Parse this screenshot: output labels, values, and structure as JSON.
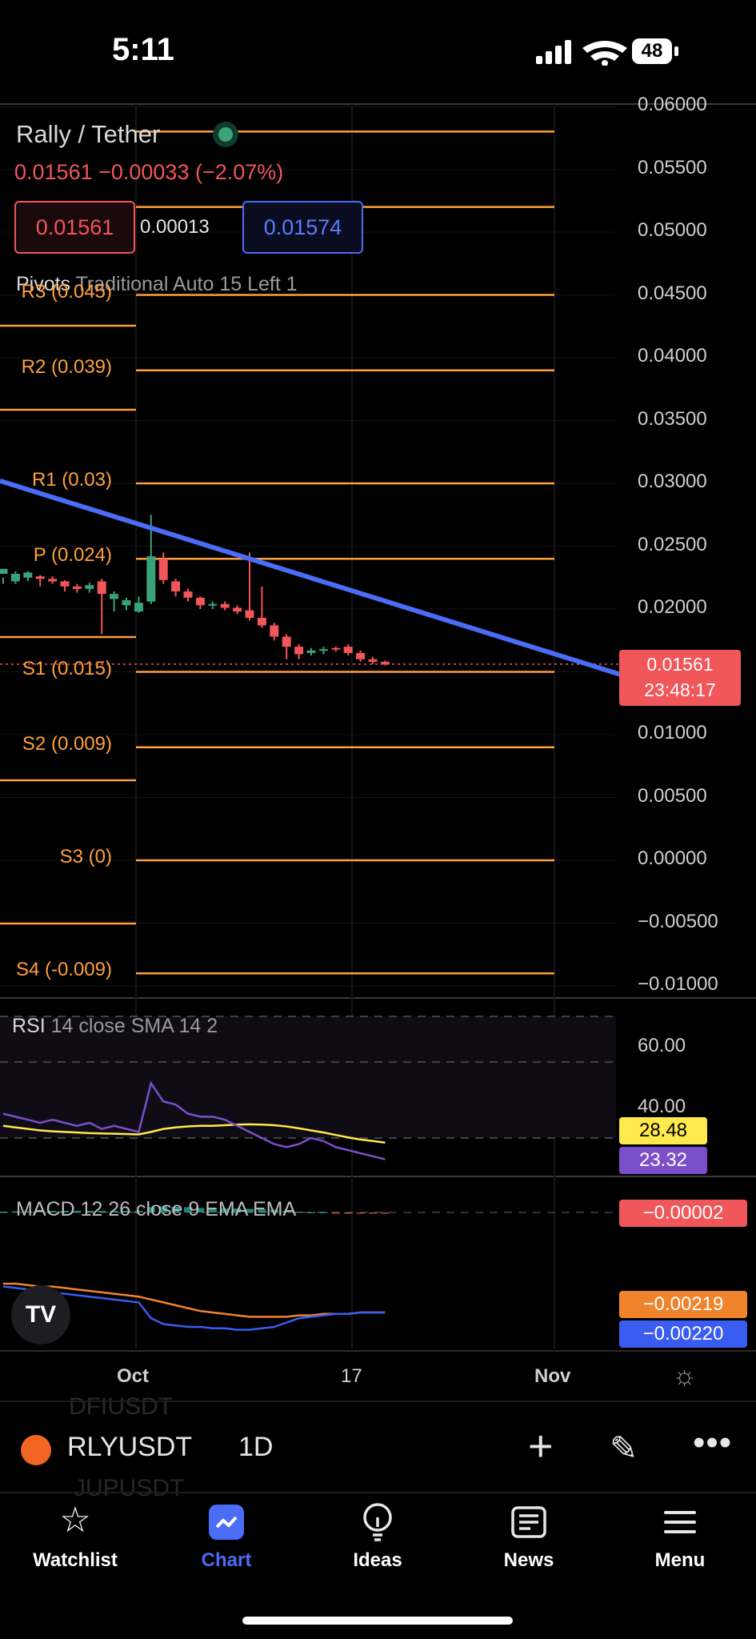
{
  "status_bar": {
    "time": "5:11",
    "battery": "48"
  },
  "header": {
    "title": "Rally / Tether",
    "price_line": "0.01561 −0.00033 (−2.07%)",
    "bid": "0.01561",
    "spread": "0.00013",
    "ask": "0.01574"
  },
  "pivots_legend": {
    "name": "Pivots",
    "params": "Traditional Auto 15 Left 1"
  },
  "pivot_levels": [
    {
      "label": "R3 (0.045)",
      "value": 0.045
    },
    {
      "label": "R2 (0.039)",
      "value": 0.039
    },
    {
      "label": "R1 (0.03)",
      "value": 0.03
    },
    {
      "label": "P (0.024)",
      "value": 0.024
    },
    {
      "label": "S1 (0.015)",
      "value": 0.015
    },
    {
      "label": "S2 (0.009)",
      "value": 0.009
    },
    {
      "label": "S3 (0)",
      "value": 0
    },
    {
      "label": "S4 (-0.009)",
      "value": -0.009
    }
  ],
  "price_axis": [
    "0.06000",
    "0.05500",
    "0.05000",
    "0.04500",
    "0.04000",
    "0.03500",
    "0.03000",
    "0.02500",
    "0.02000",
    "0.01500",
    "0.01000",
    "0.00500",
    "0.00000",
    "−0.00500",
    "−0.01000"
  ],
  "last_price_tag": {
    "price": "0.01561",
    "countdown": "23:48:17"
  },
  "rsi": {
    "legend_name": "RSI",
    "legend_params": "14 close SMA 14 2",
    "axis": [
      "60.00",
      "40.00"
    ],
    "sma_value": "28.48",
    "rsi_value": "23.32"
  },
  "macd": {
    "legend": "MACD 12 26 close 9 EMA EMA",
    "histogram_value": "−0.00002",
    "signal_value": "−0.00219",
    "macd_value": "−0.00220"
  },
  "x_axis": [
    "Oct",
    "17",
    "Nov"
  ],
  "symbol_bar": {
    "symbol": "RLYUSDT",
    "interval": "1D",
    "ghost_above": "DFIUSDT",
    "ghost_below": "JUPUSDT"
  },
  "tabs": [
    {
      "label": "Watchlist",
      "icon": "star-icon",
      "active": false
    },
    {
      "label": "Chart",
      "icon": "chart-icon",
      "active": true
    },
    {
      "label": "Ideas",
      "icon": "lightbulb-icon",
      "active": false
    },
    {
      "label": "News",
      "icon": "news-icon",
      "active": false
    },
    {
      "label": "Menu",
      "icon": "menu-icon",
      "active": false
    }
  ],
  "colors": {
    "up": "#3aa37a",
    "down": "#f0565a",
    "pivot": "#ff9f3d",
    "trendline": "#4a6cf7",
    "accent": "#4a6cf7"
  },
  "chart_data": {
    "type": "candlestick",
    "series": [
      {
        "name": "RLYUSDT",
        "ohlc": [
          [
            0.0228,
            0.0232,
            0.0225,
            0.022
          ],
          [
            0.0222,
            0.0228,
            0.023,
            0.022
          ],
          [
            0.0225,
            0.0229,
            0.023,
            0.0222
          ],
          [
            0.0226,
            0.0224,
            0.0227,
            0.0218
          ],
          [
            0.0224,
            0.0222,
            0.0226,
            0.022
          ],
          [
            0.0222,
            0.0218,
            0.0223,
            0.0214
          ],
          [
            0.0218,
            0.0216,
            0.022,
            0.0213
          ],
          [
            0.0216,
            0.0219,
            0.0221,
            0.0213
          ],
          [
            0.0222,
            0.0212,
            0.0224,
            0.018
          ],
          [
            0.0208,
            0.0212,
            0.0214,
            0.0198
          ],
          [
            0.0203,
            0.0207,
            0.0209,
            0.0199
          ],
          [
            0.0198,
            0.0205,
            0.021,
            0.0197
          ],
          [
            0.0206,
            0.0242,
            0.0275,
            0.0204
          ],
          [
            0.024,
            0.0223,
            0.0245,
            0.022
          ],
          [
            0.0222,
            0.0214,
            0.0224,
            0.021
          ],
          [
            0.0214,
            0.0209,
            0.0216,
            0.0206
          ],
          [
            0.0209,
            0.0203,
            0.021,
            0.02
          ],
          [
            0.0203,
            0.0204,
            0.0206,
            0.02
          ],
          [
            0.0204,
            0.0201,
            0.0206,
            0.0199
          ],
          [
            0.0201,
            0.0198,
            0.0203,
            0.0196
          ],
          [
            0.0199,
            0.0193,
            0.0245,
            0.0191
          ],
          [
            0.0193,
            0.0187,
            0.0218,
            0.0185
          ],
          [
            0.0187,
            0.0178,
            0.0189,
            0.0175
          ],
          [
            0.0178,
            0.017,
            0.018,
            0.016
          ],
          [
            0.017,
            0.0164,
            0.0172,
            0.016
          ],
          [
            0.0165,
            0.0167,
            0.0169,
            0.0163
          ],
          [
            0.0167,
            0.0168,
            0.017,
            0.0164
          ],
          [
            0.0169,
            0.0168,
            0.017,
            0.0166
          ],
          [
            0.017,
            0.0165,
            0.0172,
            0.0163
          ],
          [
            0.0165,
            0.016,
            0.0167,
            0.0158
          ],
          [
            0.016,
            0.0158,
            0.0162,
            0.0156
          ],
          [
            0.0158,
            0.0156,
            0.0159,
            0.0155
          ]
        ]
      }
    ],
    "ylim": [
      -0.0105,
      0.0602
    ],
    "trendline": [
      [
        0.0302,
        0.0148
      ]
    ],
    "rsi_series": [
      38,
      37,
      36,
      35,
      36,
      35,
      34,
      35,
      33,
      34,
      33,
      32,
      48,
      42,
      41,
      38,
      37,
      37,
      36,
      34,
      32,
      30,
      28,
      27,
      28,
      30,
      29,
      27,
      26,
      25,
      24,
      23
    ],
    "rsi_sma_series": [
      34,
      33.5,
      33,
      32.5,
      32.2,
      32,
      31.8,
      31.6,
      31.5,
      31.4,
      31.3,
      31.2,
      32,
      33,
      33.5,
      33.8,
      34,
      34,
      34.2,
      34.4,
      34.5,
      34.4,
      34.2,
      33.8,
      33.2,
      32.5,
      31.8,
      31,
      30.2,
      29.5,
      29,
      28.48
    ],
    "macd_series": [
      -0.004,
      -0.0039,
      -0.0038,
      -0.0037,
      -0.0036,
      -0.0035,
      -0.0034,
      -0.0033,
      -0.0032,
      -0.0031,
      -0.003,
      -0.0029,
      -0.0018,
      -0.0014,
      -0.0013,
      -0.0012,
      -0.0012,
      -0.0011,
      -0.0011,
      -0.001,
      -0.001,
      -0.0011,
      -0.0012,
      -0.0015,
      -0.0018,
      -0.0019,
      -0.002,
      -0.0021,
      -0.0021,
      -0.0022,
      -0.0022,
      -0.0022
    ],
    "signal_series": [
      -0.0042,
      -0.0042,
      -0.0041,
      -0.004,
      -0.004,
      -0.0039,
      -0.0038,
      -0.0037,
      -0.0036,
      -0.0035,
      -0.0034,
      -0.0033,
      -0.0031,
      -0.0029,
      -0.0027,
      -0.0025,
      -0.0023,
      -0.0022,
      -0.0021,
      -0.002,
      -0.0019,
      -0.0019,
      -0.0019,
      -0.0019,
      -0.002,
      -0.002,
      -0.0021,
      -0.0021,
      -0.0021,
      -0.0022,
      -0.0022,
      -0.0022
    ]
  }
}
